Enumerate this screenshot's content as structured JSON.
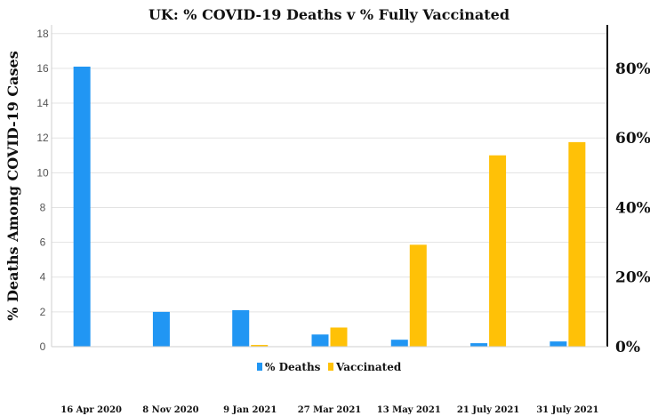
{
  "chart_data": {
    "type": "bar",
    "title": "UK: % COVID-19 Deaths v % Fully Vaccinated",
    "ylabel": "% Deaths Among COVID-19 Cases",
    "categories": [
      "16 Apr 2020",
      "8 Nov 2020",
      "9 Jan 2021",
      "27 Mar 2021",
      "13 May 2021",
      "21 July 2021",
      "31 July 2021"
    ],
    "series": [
      {
        "name": "% Deaths",
        "axis": "left",
        "color": "#2196F3",
        "values": [
          16.1,
          2.0,
          2.1,
          0.7,
          0.4,
          0.2,
          0.3
        ]
      },
      {
        "name": "Vaccinated",
        "axis": "right",
        "color": "#FFC107",
        "values": [
          0,
          0,
          0.5,
          5.5,
          29.3,
          55.0,
          58.8
        ]
      }
    ],
    "left_axis": {
      "ylim": [
        0,
        18.5
      ],
      "ticks": [
        "0",
        "2",
        "4",
        "6",
        "8",
        "10",
        "12",
        "14",
        "16",
        "18"
      ]
    },
    "right_axis": {
      "ylim": [
        0,
        92.5
      ],
      "ticks": [
        "0%",
        "20%",
        "40%",
        "60%",
        "80%"
      ]
    },
    "grid": "horizontal",
    "legend": "bottom-center"
  }
}
